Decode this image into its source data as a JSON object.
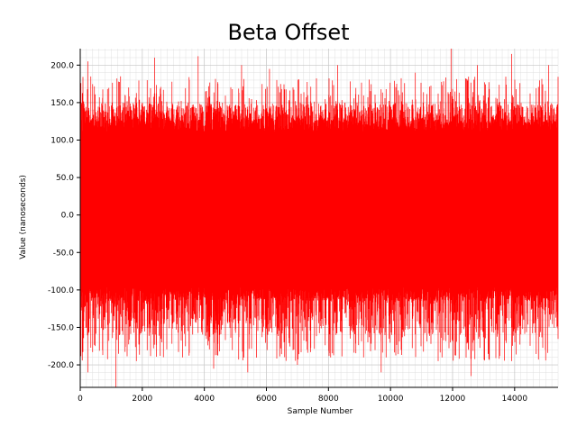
{
  "chart_data": {
    "type": "line",
    "title": "Beta Offset",
    "xlabel": "Sample Number",
    "ylabel": "Value (nanoseconds)",
    "xlim": [
      0,
      15400
    ],
    "ylim": [
      -230,
      222
    ],
    "xticks": [
      0,
      2000,
      4000,
      6000,
      8000,
      10000,
      12000,
      14000
    ],
    "xtick_labels": [
      "0",
      "2000",
      "4000",
      "6000",
      "8000",
      "10000",
      "12000",
      "14000"
    ],
    "yticks": [
      200,
      150,
      100,
      50,
      0,
      -50,
      -100,
      -150,
      -200
    ],
    "ytick_labels": [
      "200.0",
      "150.0",
      "100.0",
      "50.0",
      "0.0",
      "-50.0",
      "-100.0",
      "-150.0",
      "-200.0"
    ],
    "grid": true,
    "series": [
      {
        "color": "#ff0000",
        "n_samples": 15400,
        "dense_band": [
          -115,
          130
        ],
        "typical_range": [
          -160,
          150
        ],
        "peaks": [
          {
            "x": 250,
            "y": 205
          },
          {
            "x": 1300,
            "y": 185
          },
          {
            "x": 2400,
            "y": 210
          },
          {
            "x": 3800,
            "y": 212
          },
          {
            "x": 5200,
            "y": 200
          },
          {
            "x": 6100,
            "y": 195
          },
          {
            "x": 8300,
            "y": 200
          },
          {
            "x": 10800,
            "y": 190
          },
          {
            "x": 11950,
            "y": 222
          },
          {
            "x": 12800,
            "y": 200
          },
          {
            "x": 13900,
            "y": 215
          },
          {
            "x": 15100,
            "y": 200
          }
        ],
        "troughs": [
          {
            "x": 250,
            "y": -210
          },
          {
            "x": 1150,
            "y": -230
          },
          {
            "x": 3300,
            "y": -190
          },
          {
            "x": 4300,
            "y": -205
          },
          {
            "x": 5400,
            "y": -210
          },
          {
            "x": 7000,
            "y": -200
          },
          {
            "x": 9700,
            "y": -210
          },
          {
            "x": 12600,
            "y": -215
          },
          {
            "x": 13900,
            "y": -195
          },
          {
            "x": 15000,
            "y": -190
          }
        ]
      }
    ]
  }
}
